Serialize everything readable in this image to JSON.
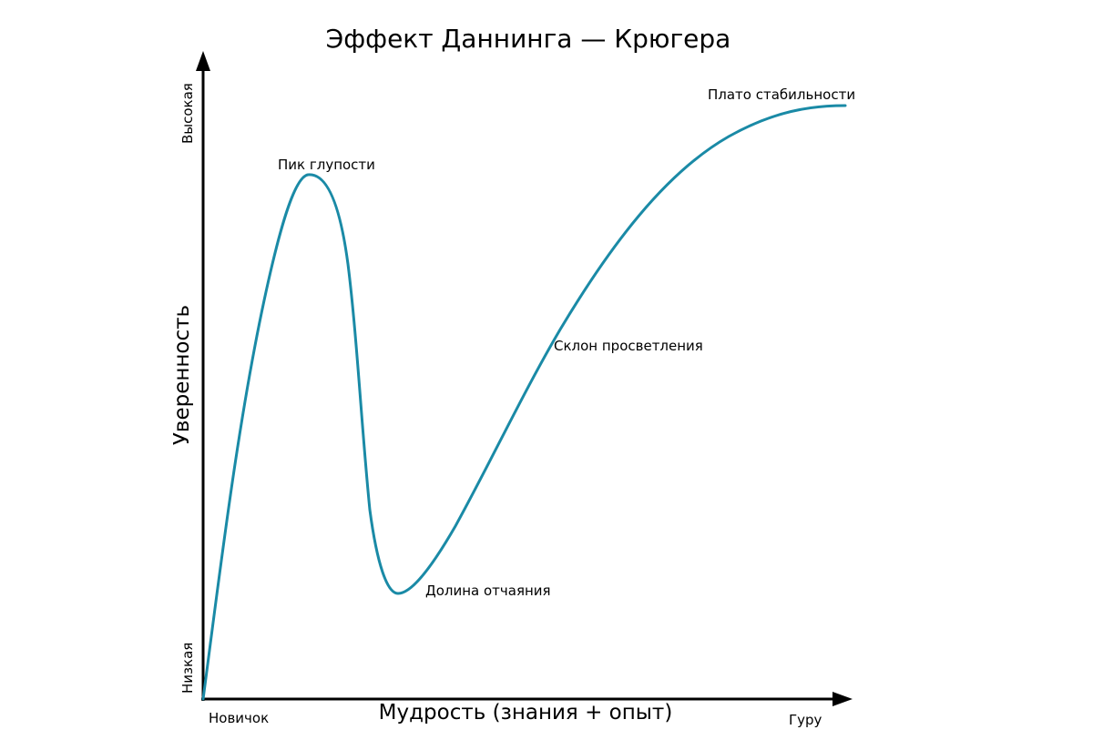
{
  "title": "Эффект Даннинга — Крюгера",
  "y_axis": {
    "label": "Уверенность",
    "low": "Низкая",
    "high": "Высокая"
  },
  "x_axis": {
    "label": "Мудрость (знания + опыт)",
    "start": "Новичок",
    "end": "Гуру"
  },
  "annotations": {
    "peak": "Пик глупости",
    "valley": "Долина отчаяния",
    "slope": "Склон просветления",
    "plateau": "Плато стабильности"
  },
  "colors": {
    "curve": "#1a8aa6",
    "axes": "#000000"
  }
}
